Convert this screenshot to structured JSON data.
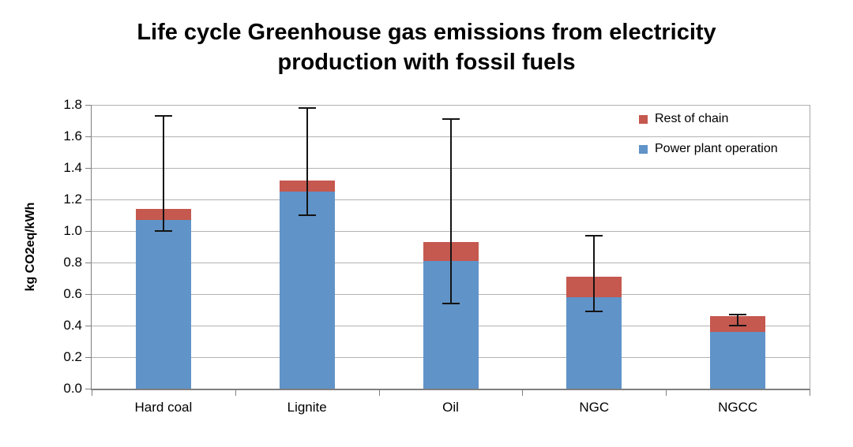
{
  "chart_data": {
    "type": "bar",
    "stacked": true,
    "title": "Life cycle Greenhouse gas emissions from electricity production with fossil fuels",
    "ylabel": "kg CO2eq/kWh",
    "xlabel": "",
    "ylim": [
      0,
      1.8
    ],
    "ytick_step": 0.2,
    "ytick_labels": [
      "0.0",
      "0.2",
      "0.4",
      "0.6",
      "0.8",
      "1.0",
      "1.2",
      "1.4",
      "1.6",
      "1.8"
    ],
    "grid": true,
    "legend_position": "top-right-inside",
    "categories": [
      "Hard coal",
      "Lignite",
      "Oil",
      "NGC",
      "NGCC"
    ],
    "series": [
      {
        "name": "Power plant operation",
        "color": "#6093C8",
        "values": [
          1.07,
          1.25,
          0.81,
          0.58,
          0.36
        ]
      },
      {
        "name": "Rest of chain",
        "color": "#C5584F",
        "values": [
          0.07,
          0.07,
          0.12,
          0.13,
          0.1
        ]
      }
    ],
    "stack_totals": [
      1.14,
      1.32,
      0.93,
      0.71,
      0.46
    ],
    "error_bars": {
      "color": "#141414",
      "low": [
        1.0,
        1.1,
        0.54,
        0.49,
        0.4
      ],
      "high": [
        1.73,
        1.78,
        1.71,
        0.97,
        0.47
      ]
    },
    "colors": {
      "gridline": "#b2b2b2",
      "axis": "#7f7f7f",
      "background": "#ffffff"
    }
  }
}
